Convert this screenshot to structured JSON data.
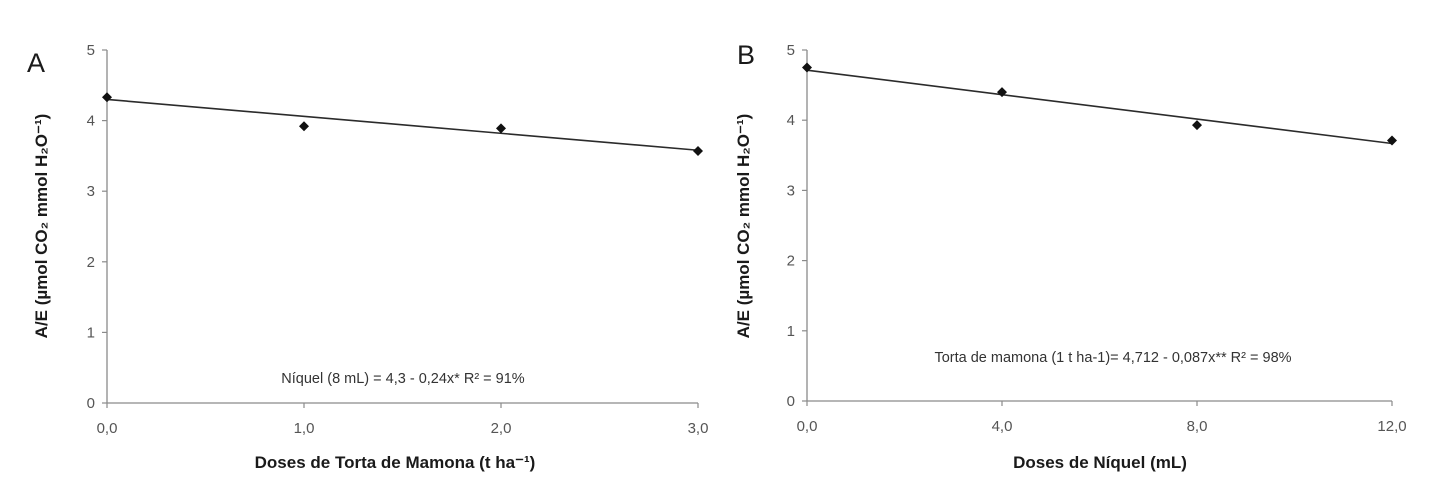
{
  "chart_data": [
    {
      "panel": "A",
      "type": "scatter",
      "x": [
        0,
        1,
        2,
        3
      ],
      "y": [
        4.33,
        3.92,
        3.89,
        3.57
      ],
      "xticks": [
        "0,0",
        "1,0",
        "2,0",
        "3,0"
      ],
      "xtick_values": [
        0,
        1,
        2,
        3
      ],
      "yticks": [
        "0",
        "1",
        "2",
        "3",
        "4",
        "5"
      ],
      "xlim": [
        0,
        3
      ],
      "ylim": [
        0,
        5
      ],
      "xlabel": "Doses de Torta de Mamona  (t ha⁻¹)",
      "ylabel": "A/E  (µmol CO₂ mmol H₂O⁻¹)",
      "trendline": {
        "intercept": 4.3,
        "slope": -0.24
      },
      "annotation": "Níquel (8 mL) = 4,3 - 0,24x* R² = 91%",
      "grid": false,
      "legend": "none"
    },
    {
      "panel": "B",
      "type": "scatter",
      "x": [
        0,
        4,
        8,
        12
      ],
      "y": [
        4.75,
        4.4,
        3.93,
        3.71
      ],
      "xticks": [
        "0,0",
        "4,0",
        "8,0",
        "12,0"
      ],
      "xtick_values": [
        0,
        4,
        8,
        12
      ],
      "yticks": [
        "0",
        "1",
        "2",
        "3",
        "4",
        "5"
      ],
      "xlim": [
        0,
        12
      ],
      "ylim": [
        0,
        5
      ],
      "xlabel": "Doses de Níquel (mL)",
      "ylabel": "A/E  (µmol CO₂ mmol H₂O⁻¹)",
      "trendline": {
        "intercept": 4.712,
        "slope": -0.087
      },
      "annotation": "Torta de mamona (1 t ha-1)= 4,712 - 0,087x** R² = 98%",
      "grid": false,
      "legend": "none"
    }
  ]
}
